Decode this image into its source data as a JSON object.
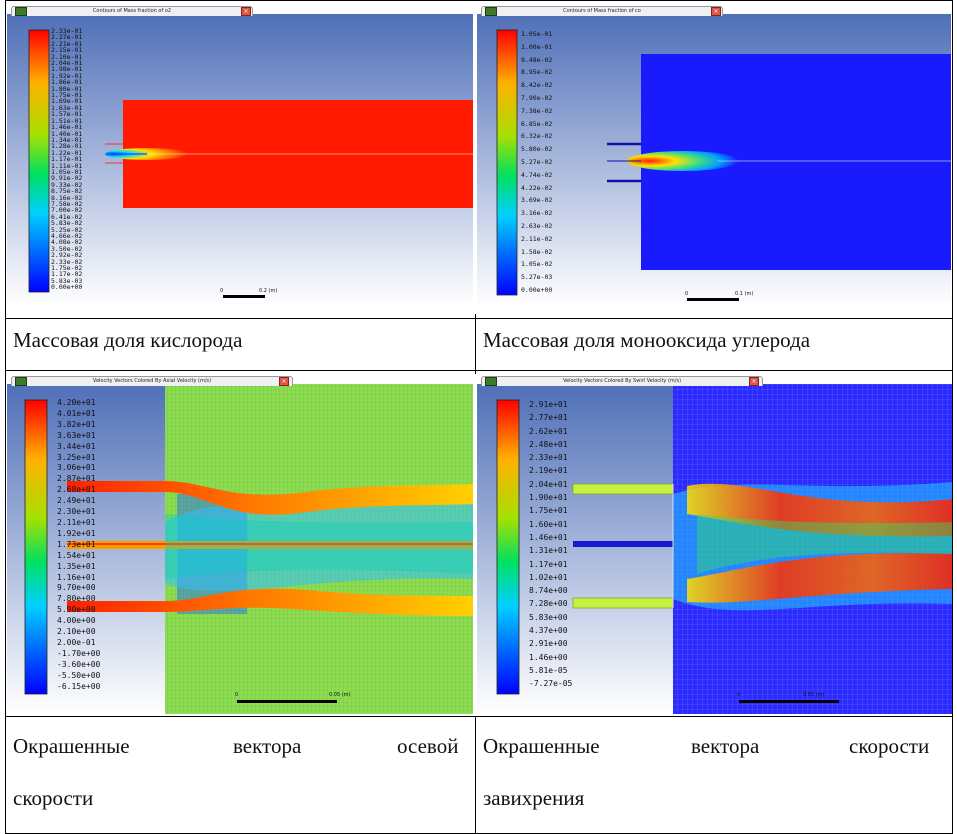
{
  "panels": {
    "o2": {
      "window_title": "Contours of Mass fraction of o2",
      "scale_left": "0",
      "scale_right": "0.2 (m)",
      "ticks": [
        "2.33e-01",
        "2.27e-01",
        "2.21e-01",
        "2.15e-01",
        "2.10e-01",
        "2.04e-01",
        "1.98e-01",
        "1.92e-01",
        "1.86e-01",
        "1.80e-01",
        "1.75e-01",
        "1.69e-01",
        "1.63e-01",
        "1.57e-01",
        "1.51e-01",
        "1.46e-01",
        "1.40e-01",
        "1.34e-01",
        "1.28e-01",
        "1.22e-01",
        "1.17e-01",
        "1.11e-01",
        "1.05e-01",
        "9.91e-02",
        "9.33e-02",
        "8.75e-02",
        "8.16e-02",
        "7.58e-02",
        "7.00e-02",
        "6.41e-02",
        "5.83e-02",
        "5.25e-02",
        "4.66e-02",
        "4.08e-02",
        "3.50e-02",
        "2.92e-02",
        "2.33e-02",
        "1.75e-02",
        "1.17e-02",
        "5.83e-03",
        "0.00e+00"
      ]
    },
    "co": {
      "window_title": "Contours of Mass fraction of co",
      "scale_left": "0",
      "scale_right": "0.1 (m)",
      "ticks": [
        "1.05e-01",
        "1.00e-01",
        "9.48e-02",
        "8.95e-02",
        "8.42e-02",
        "7.90e-02",
        "7.38e-02",
        "6.85e-02",
        "6.32e-02",
        "5.80e-02",
        "5.27e-02",
        "4.74e-02",
        "4.22e-02",
        "3.69e-02",
        "3.16e-02",
        "2.63e-02",
        "2.11e-02",
        "1.58e-02",
        "1.05e-02",
        "5.27e-03",
        "0.00e+00"
      ]
    },
    "axial": {
      "window_title": "Velocity Vectors Colored By Axial Velocity (m/s)",
      "scale_left": "0",
      "scale_right": "0.05 (m)",
      "ticks": [
        "4.20e+01",
        "4.01e+01",
        "3.82e+01",
        "3.63e+01",
        "3.44e+01",
        "3.25e+01",
        "3.06e+01",
        "2.87e+01",
        "2.68e+01",
        "2.49e+01",
        "2.30e+01",
        "2.11e+01",
        "1.92e+01",
        "1.73e+01",
        "1.54e+01",
        "1.35e+01",
        "1.16e+01",
        "9.70e+00",
        "7.80e+00",
        "5.90e+00",
        "4.00e+00",
        "2.10e+00",
        "2.00e-01",
        "-1.70e+00",
        "-3.60e+00",
        "-5.50e+00",
        "-6.15e+00"
      ]
    },
    "swirl": {
      "window_title": "Velocity Vectors Colored By Swirl Velocity (m/s)",
      "scale_left": "0",
      "scale_right": "0.05 (m)",
      "ticks": [
        "2.91e+01",
        "2.77e+01",
        "2.62e+01",
        "2.48e+01",
        "2.33e+01",
        "2.19e+01",
        "2.04e+01",
        "1.90e+01",
        "1.75e+01",
        "1.60e+01",
        "1.46e+01",
        "1.31e+01",
        "1.17e+01",
        "1.02e+01",
        "8.74e+00",
        "7.28e+00",
        "5.83e+00",
        "4.37e+00",
        "2.91e+00",
        "1.46e+00",
        "5.81e-05",
        "-7.27e-05"
      ]
    }
  },
  "captions": {
    "o2": "Массовая доля кислорода",
    "co": "Массовая доля монооксида углерода",
    "axial_line1_w1": "Окрашенные",
    "axial_line1_w2": "вектора",
    "axial_line1_w3": "осевой",
    "axial_line2": "скорости",
    "swirl_line1_w1": "Окрашенные",
    "swirl_line1_w2": "вектора",
    "swirl_line1_w3": "скорости",
    "swirl_line2": "завихрения"
  },
  "colors": {
    "bg_top": "#4f6fb8",
    "bg_bottom": "#ffffff",
    "red": "#ff1a00",
    "blue": "#1a1aff",
    "green": "#7fdc3a"
  }
}
